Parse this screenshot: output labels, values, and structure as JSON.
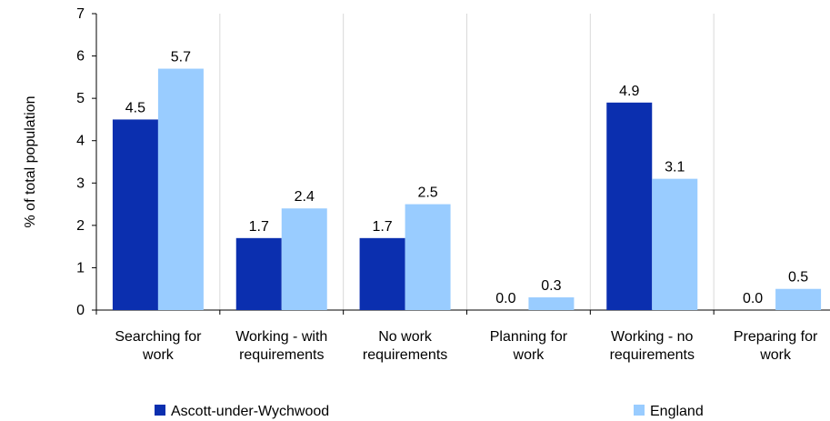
{
  "chart_data": {
    "type": "bar",
    "categories": [
      [
        "Searching for",
        "work"
      ],
      [
        "Working - with",
        "requirements"
      ],
      [
        "No work",
        "requirements"
      ],
      [
        "Planning for",
        "work"
      ],
      [
        "Working - no",
        "requirements"
      ],
      [
        "Preparing for",
        "work"
      ]
    ],
    "series": [
      {
        "name": "Ascott-under-Wychwood",
        "color": "#0B2FAF",
        "values": [
          4.5,
          1.7,
          1.7,
          0.0,
          4.9,
          0.0
        ],
        "labels": [
          "4.5",
          "1.7",
          "1.7",
          "0.0",
          "4.9",
          "0.0"
        ]
      },
      {
        "name": "England",
        "color": "#99CCFF",
        "values": [
          5.7,
          2.4,
          2.5,
          0.3,
          3.1,
          0.5
        ],
        "labels": [
          "5.7",
          "2.4",
          "2.5",
          "0.3",
          "3.1",
          "0.5"
        ]
      }
    ],
    "ylabel": "% of total population",
    "xlabel": "",
    "title": "",
    "ylim": [
      0,
      7
    ],
    "yticks": [
      0,
      1,
      2,
      3,
      4,
      5,
      6,
      7
    ],
    "grid": "vertical-separators",
    "legend": "bottom"
  }
}
